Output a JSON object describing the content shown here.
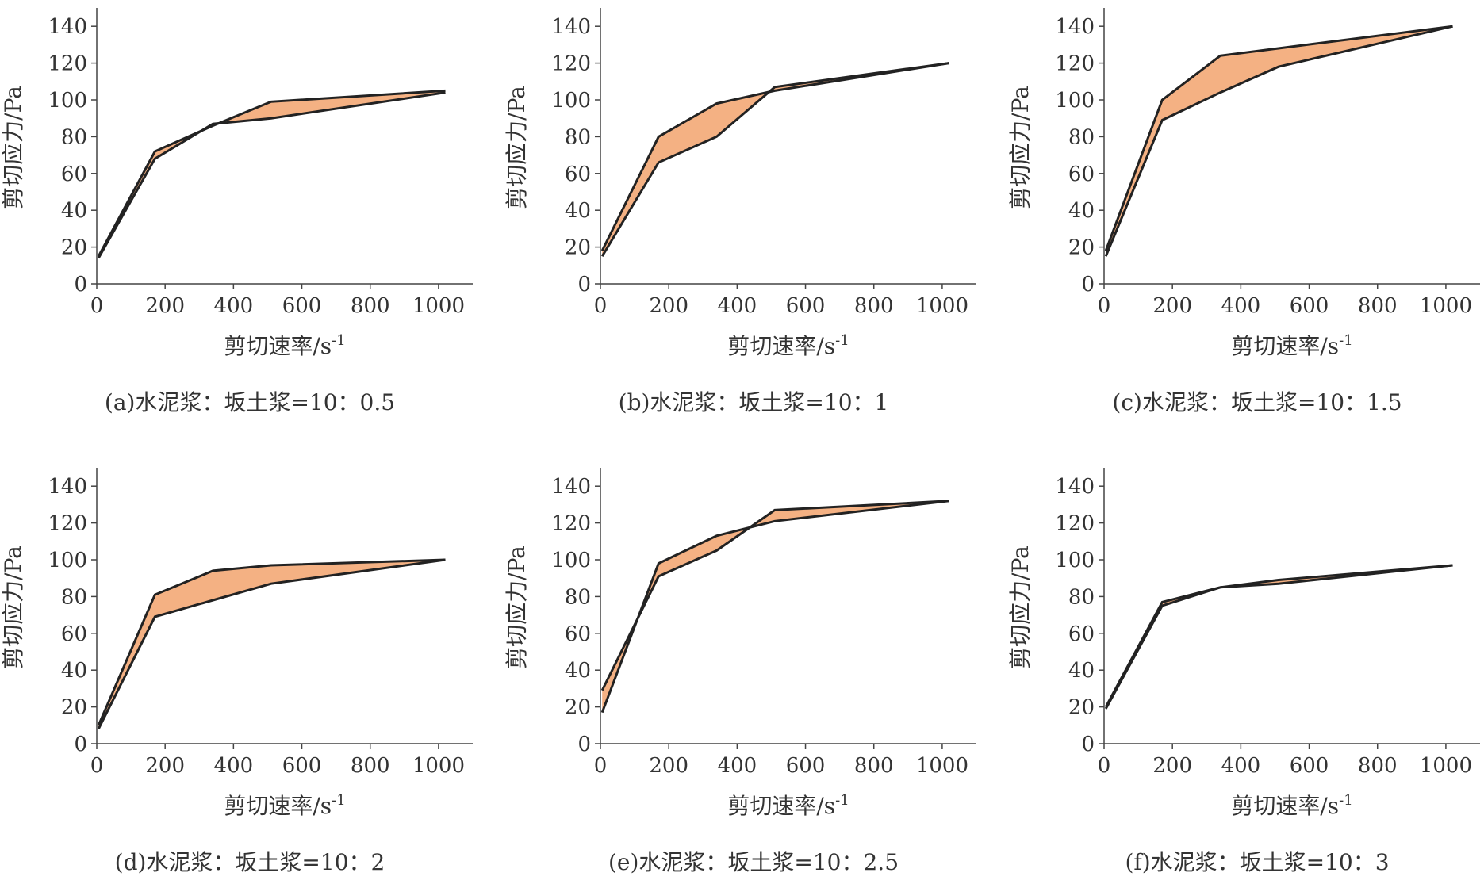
{
  "colors": {
    "fill": "#f4b183",
    "line": "#222222",
    "axis": "#444444"
  },
  "chart_data": [
    {
      "type": "line",
      "title": "(a)水泥浆：坂土浆=10：0.5",
      "xlabel": "剪切速率/s",
      "xlabel_sup": "-1",
      "ylabel": "剪切应力/Pa",
      "xlim": [
        0,
        1100
      ],
      "ylim": [
        0,
        150
      ],
      "xticks": [
        "0",
        "200",
        "400",
        "600",
        "800",
        "1000"
      ],
      "yticks": [
        "0",
        "20",
        "40",
        "60",
        "80",
        "100",
        "120",
        "140"
      ],
      "x": [
        5.1,
        170,
        340,
        510,
        1020
      ],
      "series": [
        {
          "values": [
            15,
            72,
            86,
            99,
            105
          ]
        },
        {
          "values": [
            14,
            68,
            87,
            90,
            104
          ]
        }
      ]
    },
    {
      "type": "line",
      "title": "(b)水泥浆：坂土浆=10：1",
      "xlabel": "剪切速率/s",
      "xlabel_sup": "-1",
      "ylabel": "剪切应力/Pa",
      "xlim": [
        0,
        1100
      ],
      "ylim": [
        0,
        150
      ],
      "xticks": [
        "0",
        "200",
        "400",
        "600",
        "800",
        "1000"
      ],
      "yticks": [
        "0",
        "20",
        "40",
        "60",
        "80",
        "100",
        "120",
        "140"
      ],
      "x": [
        5.1,
        170,
        340,
        510,
        1020
      ],
      "series": [
        {
          "values": [
            18,
            80,
            98,
            105,
            120
          ]
        },
        {
          "values": [
            15,
            66,
            80,
            107,
            120
          ]
        }
      ]
    },
    {
      "type": "line",
      "title": "(c)水泥浆：坂土浆=10：1.5",
      "xlabel": "剪切速率/s",
      "xlabel_sup": "-1",
      "ylabel": "剪切应力/Pa",
      "xlim": [
        0,
        1100
      ],
      "ylim": [
        0,
        150
      ],
      "xticks": [
        "0",
        "200",
        "400",
        "600",
        "800",
        "1000"
      ],
      "yticks": [
        "0",
        "20",
        "40",
        "60",
        "80",
        "100",
        "120",
        "140"
      ],
      "x": [
        5.1,
        170,
        340,
        510,
        1020
      ],
      "series": [
        {
          "values": [
            18,
            100,
            124,
            128,
            140
          ]
        },
        {
          "values": [
            15,
            89,
            104,
            118,
            140
          ]
        }
      ]
    },
    {
      "type": "line",
      "title": "(d)水泥浆：坂土浆=10：2",
      "xlabel": "剪切速率/s",
      "xlabel_sup": "-1",
      "ylabel": "剪切应力/Pa",
      "xlim": [
        0,
        1100
      ],
      "ylim": [
        0,
        150
      ],
      "xticks": [
        "0",
        "200",
        "400",
        "600",
        "800",
        "1000"
      ],
      "yticks": [
        "0",
        "20",
        "40",
        "60",
        "80",
        "100",
        "120",
        "140"
      ],
      "x": [
        5.1,
        170,
        340,
        510,
        1020
      ],
      "series": [
        {
          "values": [
            10,
            81,
            94,
            97,
            100
          ]
        },
        {
          "values": [
            8,
            69,
            78,
            87,
            100
          ]
        }
      ]
    },
    {
      "type": "line",
      "title": "(e)水泥浆：坂土浆=10：2.5",
      "xlabel": "剪切速率/s",
      "xlabel_sup": "-1",
      "ylabel": "剪切应力/Pa",
      "xlim": [
        0,
        1100
      ],
      "ylim": [
        0,
        150
      ],
      "xticks": [
        "0",
        "200",
        "400",
        "600",
        "800",
        "1000"
      ],
      "yticks": [
        "0",
        "20",
        "40",
        "60",
        "80",
        "100",
        "120",
        "140"
      ],
      "x": [
        5.1,
        170,
        340,
        510,
        1020
      ],
      "series": [
        {
          "values": [
            17,
            98,
            113,
            121,
            132
          ]
        },
        {
          "values": [
            29,
            91,
            105,
            127,
            132
          ]
        }
      ]
    },
    {
      "type": "line",
      "title": "(f)水泥浆：坂土浆=10：3",
      "xlabel": "剪切速率/s",
      "xlabel_sup": "-1",
      "ylabel": "剪切应力/Pa",
      "xlim": [
        0,
        1100
      ],
      "ylim": [
        0,
        150
      ],
      "xticks": [
        "0",
        "200",
        "400",
        "600",
        "800",
        "1000"
      ],
      "yticks": [
        "0",
        "20",
        "40",
        "60",
        "80",
        "100",
        "120",
        "140"
      ],
      "x": [
        5.1,
        170,
        340,
        510,
        1020
      ],
      "series": [
        {
          "values": [
            20,
            77,
            85,
            89,
            97
          ]
        },
        {
          "values": [
            19,
            75,
            85,
            87,
            97
          ]
        }
      ]
    }
  ]
}
